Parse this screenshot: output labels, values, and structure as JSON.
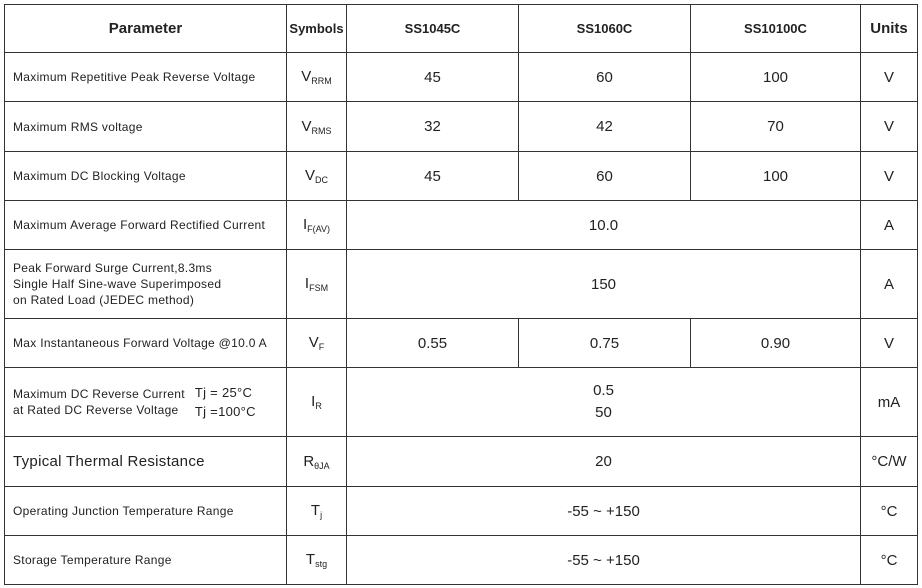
{
  "headers": {
    "parameter": "Parameter",
    "symbols": "Symbols",
    "parts": [
      "SS1045C",
      "SS1060C",
      "SS10100C"
    ],
    "units": "Units"
  },
  "rows": [
    {
      "param": "Maximum Repetitive Peak Reverse Voltage",
      "sym": "V",
      "sub": "RRM",
      "values": [
        "45",
        "60",
        "100"
      ],
      "unit": "V"
    },
    {
      "param": "Maximum RMS voltage",
      "sym": "V",
      "sub": "RMS",
      "values": [
        "32",
        "42",
        "70"
      ],
      "unit": "V"
    },
    {
      "param": "Maximum DC Blocking Voltage",
      "sym": "V",
      "sub": "DC",
      "values": [
        "45",
        "60",
        "100"
      ],
      "unit": "V"
    },
    {
      "param": "Maximum Average Forward Rectified Current",
      "sym": "I",
      "sub": "F(AV)",
      "value": "10.0",
      "unit": "A"
    },
    {
      "param_lines": [
        "Peak Forward Surge Current,8.3ms",
        "Single Half Sine-wave Superimposed",
        "on Rated Load (JEDEC method)"
      ],
      "sym": "I",
      "sub": "FSM",
      "value": "150",
      "unit": "A"
    },
    {
      "param": "Max Instantaneous Forward Voltage @10.0 A",
      "sym": "V",
      "sub": "F",
      "values": [
        "0.55",
        "0.75",
        "0.90"
      ],
      "unit": "V"
    },
    {
      "param_lines": [
        "Maximum DC Reverse Current",
        "at Rated DC Reverse Voltage"
      ],
      "conditions": [
        "Tj = 25°C",
        "Tj =100°C"
      ],
      "sym": "I",
      "sub": "R",
      "value_lines": [
        "0.5",
        "50"
      ],
      "unit": "mA"
    },
    {
      "param": "Typical Thermal Resistance",
      "sym": "R",
      "sub": "θJA",
      "value": "20",
      "unit": "°C/W"
    },
    {
      "param": "Operating Junction Temperature Range",
      "sym": "T",
      "sub": "j",
      "value": "-55 ~ +150",
      "unit": "°C"
    },
    {
      "param": "Storage Temperature Range",
      "sym": "T",
      "sub": "stg",
      "value": "-55 ~ +150",
      "unit": "°C"
    }
  ]
}
